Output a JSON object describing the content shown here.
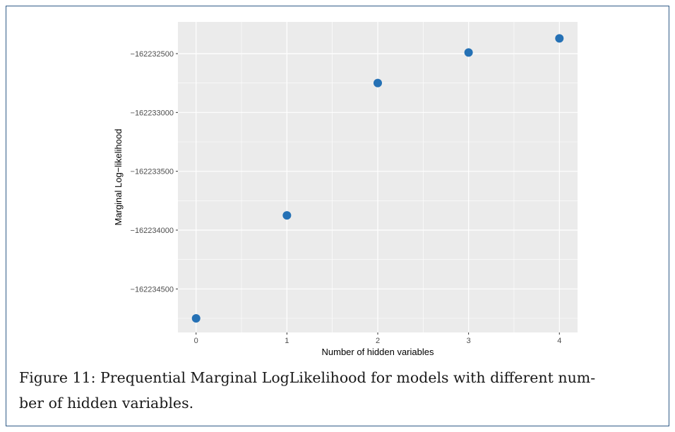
{
  "chart_data": {
    "type": "scatter",
    "x": [
      0,
      1,
      2,
      3,
      4
    ],
    "y": [
      -162234750,
      -162233875,
      -162232750,
      -162232490,
      -162232370
    ],
    "xlabel": "Number of hidden variables",
    "ylabel": "Marginal Log−likelihood",
    "x_ticks": [
      "0",
      "1",
      "2",
      "3",
      "4"
    ],
    "y_ticks": [
      "−162232500",
      "−162233000",
      "−162233500",
      "−162234000",
      "−162234500"
    ],
    "y_tick_values": [
      -162232500,
      -162233000,
      -162233500,
      -162234000,
      -162234500
    ],
    "xlim": [
      -0.2,
      4.2
    ],
    "ylim": [
      -162234870,
      -162232230
    ],
    "grid": true,
    "point_color": "#2571b5",
    "panel_color": "#ebebeb"
  },
  "caption": {
    "line1": "Figure 11:  Prequential Marginal LogLikelihood for models with different num-",
    "line2": "ber of hidden variables."
  }
}
